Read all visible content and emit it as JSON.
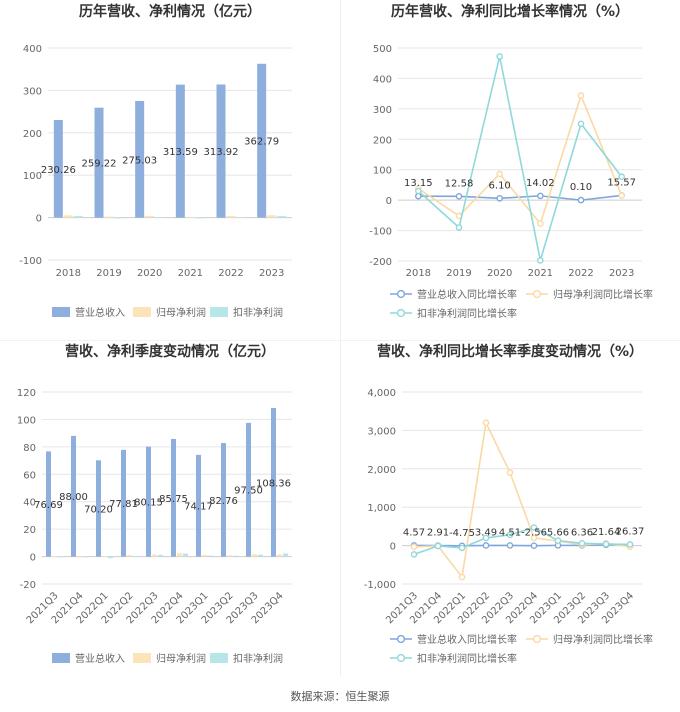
{
  "footer": "数据来源：恒生聚源",
  "colors": {
    "revenue": "#8eaede",
    "parent_profit": "#fde3b8",
    "deducted_profit": "#b7e6e8",
    "revenue_line": "#7fa6dc",
    "parent_line": "#fbd9a4",
    "deducted_line": "#8fd8dc",
    "axis_text": "#666666",
    "grid": "#e6e6e6"
  },
  "chart_data": [
    {
      "type": "bar",
      "title": "历年营收、净利情况（亿元）",
      "categories": [
        "2018",
        "2019",
        "2020",
        "2021",
        "2022",
        "2023"
      ],
      "series": [
        {
          "name": "营业总收入",
          "values": [
            230.26,
            259.22,
            275.03,
            313.59,
            313.92,
            362.79
          ],
          "labeled": true
        },
        {
          "name": "归母净利润",
          "values": [
            5.3,
            2.3,
            4.1,
            1.6,
            3.9,
            5.6
          ]
        },
        {
          "name": "扣非净利润",
          "values": [
            3.6,
            0.2,
            0.9,
            -0.4,
            1.0,
            3.5
          ]
        }
      ],
      "labels": [
        "230.26",
        "259.22",
        "275.03",
        "313.59",
        "313.92",
        "362.79"
      ],
      "ylim": [
        -100,
        400
      ],
      "yticks": [
        "-100",
        "0",
        "100",
        "200",
        "300",
        "400"
      ],
      "legend": "bottom"
    },
    {
      "type": "line",
      "title": "历年营收、净利同比增长率情况（%）",
      "categories": [
        "2018",
        "2019",
        "2020",
        "2021",
        "2022",
        "2023"
      ],
      "series": [
        {
          "name": "营业总收入同比增长率",
          "values": [
            13.15,
            12.58,
            6.1,
            14.02,
            0.1,
            15.57
          ],
          "labeled": true
        },
        {
          "name": "归母净利润同比增长率",
          "values": [
            38,
            -52,
            86,
            -77,
            344,
            15
          ]
        },
        {
          "name": "扣非净利润同比增长率",
          "values": [
            30,
            -90,
            472,
            -198,
            251,
            77
          ]
        }
      ],
      "labels": [
        "13.15",
        "12.58",
        "6.10",
        "14.02",
        "0.10",
        "15.57"
      ],
      "ylim": [
        -200,
        500
      ],
      "yticks": [
        "-200",
        "-100",
        "0",
        "100",
        "200",
        "300",
        "400",
        "500"
      ],
      "legend": "bottom"
    },
    {
      "type": "bar",
      "title": "营收、净利季度变动情况（亿元）",
      "categories": [
        "2021Q3",
        "2021Q4",
        "2022Q1",
        "2022Q2",
        "2022Q3",
        "2022Q4",
        "2023Q1",
        "2023Q2",
        "2023Q3",
        "2023Q4"
      ],
      "series": [
        {
          "name": "营业总收入",
          "values": [
            76.69,
            88.0,
            70.2,
            77.81,
            80.15,
            85.75,
            74.17,
            82.76,
            97.5,
            108.36
          ],
          "labeled": true
        },
        {
          "name": "归母净利润",
          "values": [
            0.3,
            -0.5,
            0.4,
            1.1,
            1.5,
            2.4,
            1.2,
            1.0,
            1.8,
            1.6
          ]
        },
        {
          "name": "扣非净利润",
          "values": [
            -0.2,
            -0.4,
            -1.2,
            0.3,
            1.3,
            2.2,
            0.7,
            0.6,
            1.4,
            2.3
          ]
        }
      ],
      "labels": [
        "76.69",
        "88.00",
        "70.20",
        "77.81",
        "80.15",
        "85.75",
        "74.17",
        "82.76",
        "97.50",
        "108.36"
      ],
      "ylim": [
        -20,
        120
      ],
      "yticks": [
        "-20",
        "0",
        "20",
        "40",
        "60",
        "80",
        "100",
        "120"
      ],
      "legend": "bottom"
    },
    {
      "type": "line",
      "title": "营收、净利同比增长率季度变动情况（%）",
      "categories": [
        "2021Q3",
        "2021Q4",
        "2022Q1",
        "2022Q2",
        "2022Q3",
        "2022Q4",
        "2023Q1",
        "2023Q2",
        "2023Q3",
        "2023Q4"
      ],
      "series": [
        {
          "name": "营业总收入同比增长率",
          "values": [
            4.57,
            2.91,
            -4.75,
            3.49,
            4.51,
            -2.56,
            5.66,
            6.36,
            21.64,
            26.37
          ],
          "labeled": true
        },
        {
          "name": "归母净利润同比增长率",
          "values": [
            -30,
            -10,
            -820,
            3200,
            1900,
            200,
            120,
            20,
            60,
            -30
          ]
        },
        {
          "name": "扣非净利润同比增长率",
          "values": [
            -230,
            -10,
            -60,
            200,
            280,
            470,
            130,
            60,
            40,
            30
          ]
        }
      ],
      "labels": [
        "4.57",
        "2.91",
        "-4.75",
        "3.49",
        "4.51",
        "-2.56",
        "5.66",
        "6.36",
        "21.64",
        "26.37"
      ],
      "ylim": [
        -1000,
        4000
      ],
      "yticks": [
        "-1,000",
        "0",
        "1,000",
        "2,000",
        "3,000",
        "4,000"
      ],
      "legend": "bottom"
    }
  ]
}
